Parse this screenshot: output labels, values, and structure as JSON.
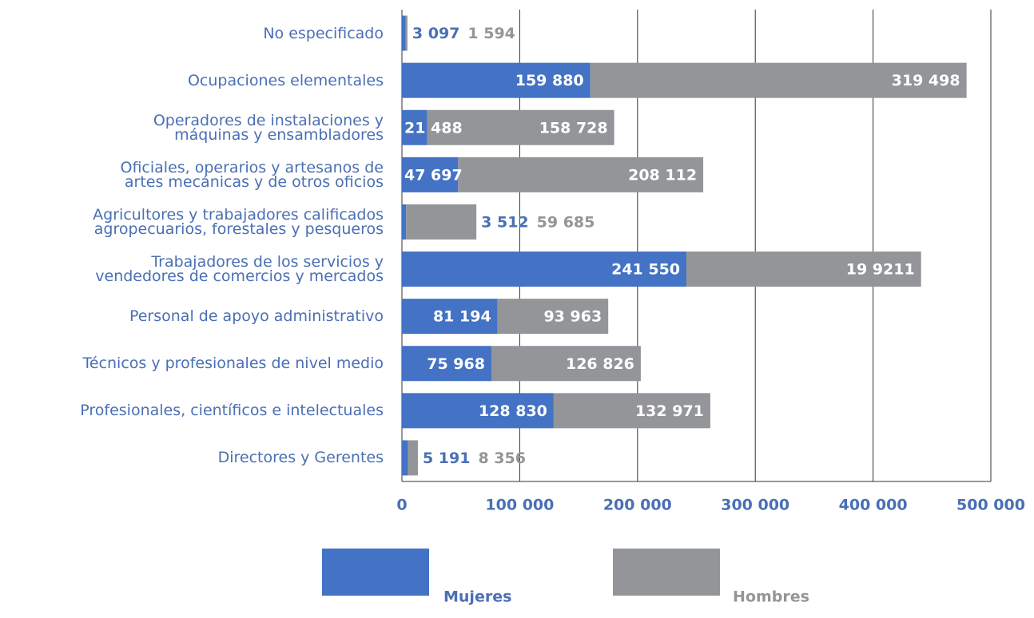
{
  "chart_data": {
    "type": "stacked-bar-horizontal",
    "categories": [
      "No especificado",
      "Ocupaciones elementales",
      "Operadores de instalaciones y\nmáquinas y ensambladores",
      "Oficiales, operarios y artesanos de\nartes mecánicas y de otros oficios",
      "Agricultores y trabajadores calificados\nagropecuarios, forestales y pesqueros",
      "Trabajadores de los servicios y\nvendedores de comercios y mercados",
      "Personal de apoyo administrativo",
      "Técnicos y profesionales de nivel medio",
      "Profesionales, científicos e intelectuales",
      "Directores y Gerentes"
    ],
    "series": [
      {
        "name": "Mujeres",
        "color": "#4472c4",
        "values": [
          3097,
          159880,
          21488,
          47697,
          3512,
          241550,
          81194,
          75968,
          128830,
          5191
        ],
        "value_labels": [
          "3 097",
          "159 880",
          "21 488",
          "47 697",
          "3 512",
          "241 550",
          "81 194",
          "75 968",
          "128 830",
          "5 191"
        ]
      },
      {
        "name": "Hombres",
        "color": "#939598",
        "values": [
          1594,
          319498,
          158728,
          208112,
          59685,
          199211,
          93963,
          126826,
          132971,
          8356
        ],
        "value_labels": [
          "1 594",
          "319 498",
          "158 728",
          "208 112",
          "59 685",
          "19 9211",
          "93 963",
          "126 826",
          "132 971",
          "8 356"
        ]
      }
    ],
    "xlim": [
      0,
      500000
    ],
    "xticks": [
      0,
      {
        "value": 100000,
        "label": "100 000"
      },
      {
        "value": 200000,
        "label": "200 000"
      },
      {
        "value": 300000,
        "label": "300 000"
      },
      {
        "value": 400000,
        "label": "400 000"
      },
      {
        "value": 500000,
        "label": "500 000"
      }
    ],
    "grid": true
  }
}
